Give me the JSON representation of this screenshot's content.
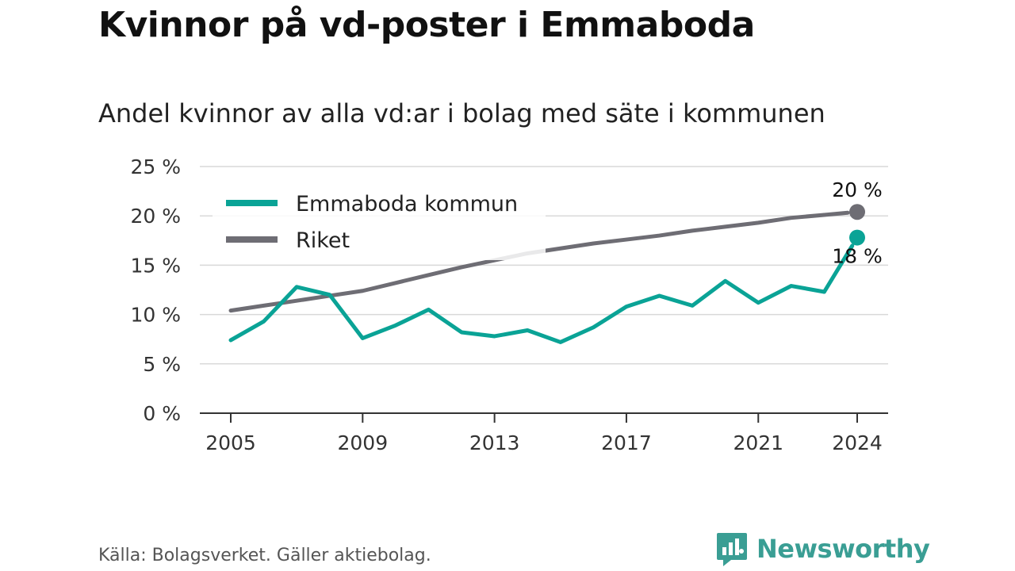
{
  "title": "Kvinnor på vd-poster i Emmaboda",
  "subtitle": "Andel kvinnor av alla vd:ar i bolag med säte i kommunen",
  "source": "Källa: Bolagsverket. Gäller aktiebolag.",
  "brand": "Newsworthy",
  "colors": {
    "emmaboda": "#0aa396",
    "riket": "#6e6d74",
    "brand": "#3a9e94"
  },
  "chart_data": {
    "type": "line",
    "title": "Kvinnor på vd-poster i Emmaboda",
    "subtitle": "Andel kvinnor av alla vd:ar i bolag med säte i kommunen",
    "x": [
      2005,
      2006,
      2007,
      2008,
      2009,
      2010,
      2011,
      2012,
      2013,
      2014,
      2015,
      2016,
      2017,
      2018,
      2019,
      2020,
      2021,
      2022,
      2023,
      2024
    ],
    "x_ticks": [
      "2005",
      "2009",
      "2013",
      "2017",
      "2021",
      "2024"
    ],
    "y_ticks": [
      "0 %",
      "5 %",
      "10 %",
      "15 %",
      "20 %",
      "25 %"
    ],
    "ylim": [
      0,
      25
    ],
    "grid": true,
    "legend": "top-left",
    "series": [
      {
        "name": "Emmaboda kommun",
        "values": [
          7.4,
          9.3,
          12.8,
          12.0,
          7.6,
          8.9,
          10.5,
          8.2,
          7.8,
          8.4,
          7.2,
          8.7,
          10.8,
          11.9,
          10.9,
          13.4,
          11.2,
          12.9,
          12.3,
          17.8
        ],
        "end_label": "18 %"
      },
      {
        "name": "Riket",
        "values": [
          10.4,
          10.9,
          11.4,
          11.9,
          12.4,
          13.2,
          14.0,
          14.8,
          15.5,
          16.2,
          16.7,
          17.2,
          17.6,
          18.0,
          18.5,
          18.9,
          19.3,
          19.8,
          20.1,
          20.4
        ],
        "end_label": "20 %"
      }
    ]
  }
}
